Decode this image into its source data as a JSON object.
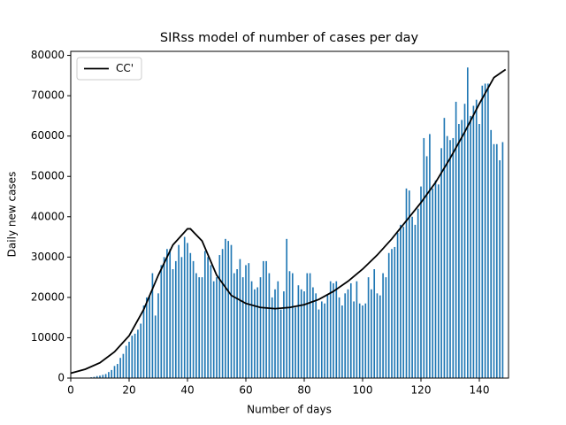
{
  "chart_data": {
    "type": "bar",
    "title": "SIRss model of number of cases per day",
    "xlabel": "Number of days",
    "ylabel": "Daily new cases",
    "xlim": [
      0,
      150
    ],
    "ylim": [
      0,
      81000
    ],
    "xticks": [
      0,
      20,
      40,
      60,
      80,
      100,
      120,
      140
    ],
    "yticks": [
      0,
      10000,
      20000,
      30000,
      40000,
      50000,
      60000,
      70000,
      80000
    ],
    "color": "#1f77b4",
    "x": [
      0,
      1,
      2,
      3,
      4,
      5,
      6,
      7,
      8,
      9,
      10,
      11,
      12,
      13,
      14,
      15,
      16,
      17,
      18,
      19,
      20,
      21,
      22,
      23,
      24,
      25,
      26,
      27,
      28,
      29,
      30,
      31,
      32,
      33,
      34,
      35,
      36,
      37,
      38,
      39,
      40,
      41,
      42,
      43,
      44,
      45,
      46,
      47,
      48,
      49,
      50,
      51,
      52,
      53,
      54,
      55,
      56,
      57,
      58,
      59,
      60,
      61,
      62,
      63,
      64,
      65,
      66,
      67,
      68,
      69,
      70,
      71,
      72,
      73,
      74,
      75,
      76,
      77,
      78,
      79,
      80,
      81,
      82,
      83,
      84,
      85,
      86,
      87,
      88,
      89,
      90,
      91,
      92,
      93,
      94,
      95,
      96,
      97,
      98,
      99,
      100,
      101,
      102,
      103,
      104,
      105,
      106,
      107,
      108,
      109,
      110,
      111,
      112,
      113,
      114,
      115,
      116,
      117,
      118,
      119,
      120,
      121,
      122,
      123,
      124,
      125,
      126,
      127,
      128,
      129,
      130,
      131,
      132,
      133,
      134,
      135,
      136,
      137,
      138,
      139,
      140,
      141,
      142,
      143,
      144,
      145,
      146,
      147,
      148
    ],
    "values": [
      0,
      0,
      0,
      0,
      0,
      0,
      0,
      200,
      300,
      500,
      600,
      800,
      1000,
      1500,
      2000,
      3000,
      3500,
      5000,
      6000,
      8000,
      9000,
      10500,
      11000,
      12000,
      13500,
      18000,
      20000,
      20500,
      26000,
      15500,
      21000,
      28000,
      30000,
      32000,
      32000,
      27000,
      29000,
      33000,
      30000,
      35000,
      33500,
      31000,
      29000,
      26000,
      25000,
      25000,
      31500,
      30000,
      28000,
      24000,
      25000,
      30500,
      32000,
      34500,
      34000,
      33000,
      26000,
      27000,
      29500,
      25000,
      28000,
      28500,
      24000,
      22000,
      22500,
      25000,
      29000,
      29000,
      26000,
      20000,
      22000,
      24000,
      17000,
      21500,
      34500,
      26500,
      26000,
      17500,
      23000,
      22000,
      21500,
      26000,
      26000,
      22500,
      21000,
      17000,
      19000,
      18500,
      20500,
      24000,
      23500,
      24000,
      20000,
      18000,
      21000,
      22000,
      23500,
      19000,
      24000,
      18500,
      18000,
      18500,
      25000,
      22000,
      27000,
      21000,
      20500,
      26000,
      25000,
      31000,
      32000,
      32500,
      36000,
      38000,
      37500,
      47000,
      46500,
      40000,
      38000,
      42000,
      47500,
      59500,
      55000,
      60500,
      47000,
      49000,
      48000,
      57000,
      64500,
      60000,
      59000,
      59500,
      68500,
      63000,
      64000,
      68000,
      77000,
      65000,
      67500,
      69000,
      63000,
      72500,
      73000,
      73000,
      61500,
      58000,
      58000,
      54000,
      58500
    ],
    "line": {
      "type": "line",
      "name": "CC'",
      "color": "#000000",
      "x": [
        0,
        5,
        10,
        15,
        20,
        25,
        30,
        35,
        40,
        41,
        45,
        50,
        55,
        60,
        65,
        70,
        75,
        80,
        85,
        90,
        95,
        100,
        105,
        110,
        115,
        120,
        125,
        130,
        135,
        140,
        145,
        148,
        149
      ],
      "values": [
        1200,
        2200,
        3800,
        6500,
        10500,
        17000,
        25500,
        33000,
        37000,
        37000,
        34000,
        25500,
        20500,
        18500,
        17500,
        17200,
        17500,
        18200,
        19500,
        21500,
        24000,
        27000,
        30500,
        34500,
        39000,
        43500,
        48500,
        54500,
        61000,
        68000,
        74500,
        76000,
        76500
      ]
    },
    "legend": "upper left"
  }
}
